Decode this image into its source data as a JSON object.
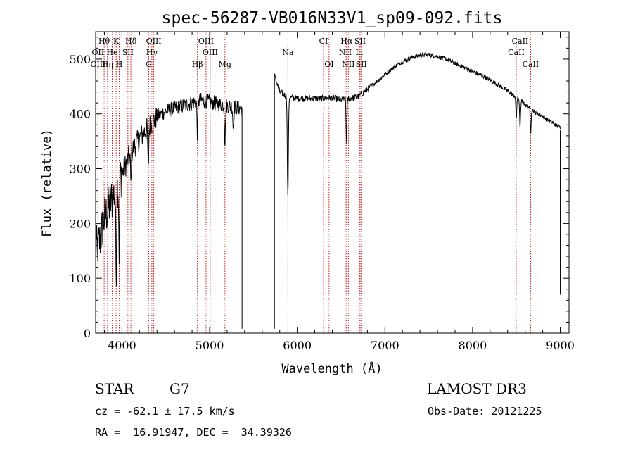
{
  "chart_data": {
    "type": "line",
    "title": "spec-56287-VB016N33V1_sp09-092.fits",
    "xlabel": "Wavelength (Å)",
    "ylabel": "Flux (relative)",
    "xlim": [
      3700,
      9100
    ],
    "ylim": [
      0,
      550
    ],
    "xticks": [
      4000,
      5000,
      6000,
      7000,
      8000,
      9000
    ],
    "yticks": [
      0,
      100,
      200,
      300,
      400,
      500
    ],
    "gap": [
      5370,
      5740
    ],
    "spectrum_anchors": [
      [
        3700,
        150
      ],
      [
        3750,
        170
      ],
      [
        3800,
        210
      ],
      [
        3850,
        230
      ],
      [
        3900,
        250
      ],
      [
        3950,
        270
      ],
      [
        4000,
        290
      ],
      [
        4050,
        310
      ],
      [
        4100,
        330
      ],
      [
        4200,
        355
      ],
      [
        4300,
        375
      ],
      [
        4400,
        395
      ],
      [
        4500,
        405
      ],
      [
        4600,
        410
      ],
      [
        4700,
        415
      ],
      [
        4800,
        420
      ],
      [
        4900,
        425
      ],
      [
        5000,
        422
      ],
      [
        5100,
        418
      ],
      [
        5200,
        415
      ],
      [
        5300,
        412
      ],
      [
        5360,
        410
      ],
      [
        5740,
        470
      ],
      [
        5800,
        440
      ],
      [
        5900,
        430
      ],
      [
        6000,
        428
      ],
      [
        6100,
        428
      ],
      [
        6200,
        428
      ],
      [
        6300,
        428
      ],
      [
        6400,
        430
      ],
      [
        6500,
        425
      ],
      [
        6600,
        428
      ],
      [
        6700,
        432
      ],
      [
        6800,
        445
      ],
      [
        6900,
        458
      ],
      [
        7000,
        472
      ],
      [
        7100,
        485
      ],
      [
        7200,
        495
      ],
      [
        7300,
        502
      ],
      [
        7400,
        507
      ],
      [
        7500,
        508
      ],
      [
        7600,
        505
      ],
      [
        7700,
        500
      ],
      [
        7800,
        492
      ],
      [
        7900,
        485
      ],
      [
        8000,
        478
      ],
      [
        8100,
        470
      ],
      [
        8200,
        462
      ],
      [
        8300,
        452
      ],
      [
        8400,
        442
      ],
      [
        8500,
        430
      ],
      [
        8600,
        418
      ],
      [
        8700,
        405
      ],
      [
        8800,
        395
      ],
      [
        8900,
        385
      ],
      [
        9000,
        375
      ]
    ],
    "absorption_features": [
      {
        "x": 3934,
        "depth": 150
      },
      {
        "x": 3969,
        "depth": 130
      },
      {
        "x": 4102,
        "depth": 60
      },
      {
        "x": 4300,
        "depth": 80
      },
      {
        "x": 4861,
        "depth": 60
      },
      {
        "x": 5175,
        "depth": 70
      },
      {
        "x": 5270,
        "depth": 40
      },
      {
        "x": 5890,
        "depth": 120
      },
      {
        "x": 5896,
        "depth": 100
      },
      {
        "x": 6563,
        "depth": 80
      },
      {
        "x": 8498,
        "depth": 40
      },
      {
        "x": 8542,
        "depth": 50
      },
      {
        "x": 8662,
        "depth": 45
      }
    ],
    "line_markers": [
      {
        "label": "Hθ",
        "x": 3797,
        "row": 0
      },
      {
        "label": "K",
        "x": 3934,
        "row": 0
      },
      {
        "label": "Hδ",
        "x": 4102,
        "row": 0
      },
      {
        "label": "OIII",
        "x": 4363,
        "row": 0
      },
      {
        "label": "OIII",
        "x": 4959,
        "row": 0
      },
      {
        "label": "CI",
        "x": 6300,
        "row": 0
      },
      {
        "label": "Hα",
        "x": 6563,
        "row": 0
      },
      {
        "label": "SII",
        "x": 6717,
        "row": 0
      },
      {
        "label": "CaII",
        "x": 8542,
        "row": 0
      },
      {
        "label": "OII",
        "x": 3727,
        "row": 1
      },
      {
        "label": "He",
        "x": 3889,
        "row": 1
      },
      {
        "label": "SII",
        "x": 4068,
        "row": 1
      },
      {
        "label": "Hγ",
        "x": 4341,
        "row": 1
      },
      {
        "label": "OIII",
        "x": 5007,
        "row": 1
      },
      {
        "label": "Na",
        "x": 5893,
        "row": 1
      },
      {
        "label": "NII",
        "x": 6548,
        "row": 1
      },
      {
        "label": "Li",
        "x": 6708,
        "row": 1
      },
      {
        "label": "CaII",
        "x": 8498,
        "row": 1
      },
      {
        "label": "OIII",
        "x": 3727,
        "row": 2
      },
      {
        "label": "Hη",
        "x": 3835,
        "row": 2
      },
      {
        "label": "H",
        "x": 3969,
        "row": 2
      },
      {
        "label": "G",
        "x": 4305,
        "row": 2
      },
      {
        "label": "Hβ",
        "x": 4861,
        "row": 2
      },
      {
        "label": "Mg",
        "x": 5175,
        "row": 2
      },
      {
        "label": "OI",
        "x": 6363,
        "row": 2
      },
      {
        "label": "NII",
        "x": 6583,
        "row": 2
      },
      {
        "label": "SII",
        "x": 6731,
        "row": 2
      },
      {
        "label": "CaII",
        "x": 8662,
        "row": 2
      }
    ]
  },
  "footer": {
    "class_label": "STAR",
    "subclass": "G7",
    "survey": "LAMOST DR3",
    "cz_line": "cz = -62.1 ± 17.5 km/s",
    "obs_date": "Obs-Date: 20121225",
    "coords": "RA =  16.91947, DEC =  34.39326"
  }
}
